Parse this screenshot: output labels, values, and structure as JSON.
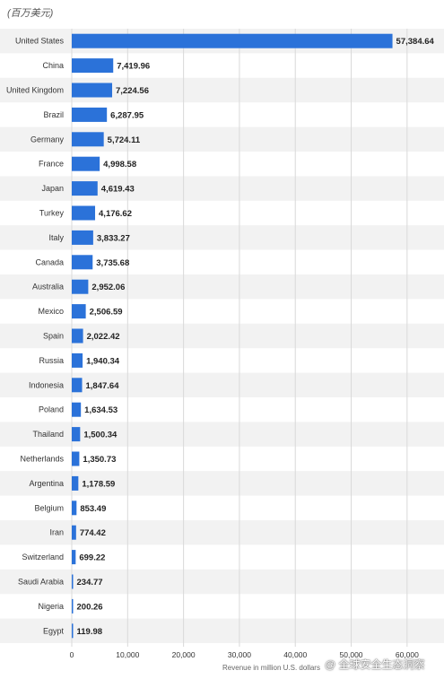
{
  "header": {
    "unit_caption": "(百万美元)"
  },
  "watermark": "@ 全球安全生态洞察",
  "colors": {
    "bar": "#2b72d9",
    "stripe": "#f2f2f2",
    "grid": "#d9d9d9"
  },
  "chart_data": {
    "type": "bar",
    "orientation": "horizontal",
    "title": "",
    "xlabel": "Revenue in million U.S. dollars",
    "ylabel": "",
    "xlim": [
      0,
      65000
    ],
    "xticks": [
      0,
      10000,
      20000,
      30000,
      40000,
      50000,
      60000
    ],
    "xtick_labels": [
      "0",
      "10,000",
      "20,000",
      "30,000",
      "40,000",
      "50,000",
      "60,000"
    ],
    "grid": true,
    "categories": [
      "United States",
      "China",
      "United Kingdom",
      "Brazil",
      "Germany",
      "France",
      "Japan",
      "Turkey",
      "Italy",
      "Canada",
      "Australia",
      "Mexico",
      "Spain",
      "Russia",
      "Indonesia",
      "Poland",
      "Thailand",
      "Netherlands",
      "Argentina",
      "Belgium",
      "Iran",
      "Switzerland",
      "Saudi Arabia",
      "Nigeria",
      "Egypt"
    ],
    "values": [
      57384.64,
      7419.96,
      7224.56,
      6287.95,
      5724.11,
      4998.58,
      4619.43,
      4176.62,
      3833.27,
      3735.68,
      2952.06,
      2506.59,
      2022.42,
      1940.34,
      1847.64,
      1634.53,
      1500.34,
      1350.73,
      1178.59,
      853.49,
      774.42,
      699.22,
      234.77,
      200.26,
      119.98
    ],
    "value_labels": [
      "57,384.64",
      "7,419.96",
      "7,224.56",
      "6,287.95",
      "5,724.11",
      "4,998.58",
      "4,619.43",
      "4,176.62",
      "3,833.27",
      "3,735.68",
      "2,952.06",
      "2,506.59",
      "2,022.42",
      "1,940.34",
      "1,847.64",
      "1,634.53",
      "1,500.34",
      "1,350.73",
      "1,178.59",
      "853.49",
      "774.42",
      "699.22",
      "234.77",
      "200.26",
      "119.98"
    ]
  }
}
